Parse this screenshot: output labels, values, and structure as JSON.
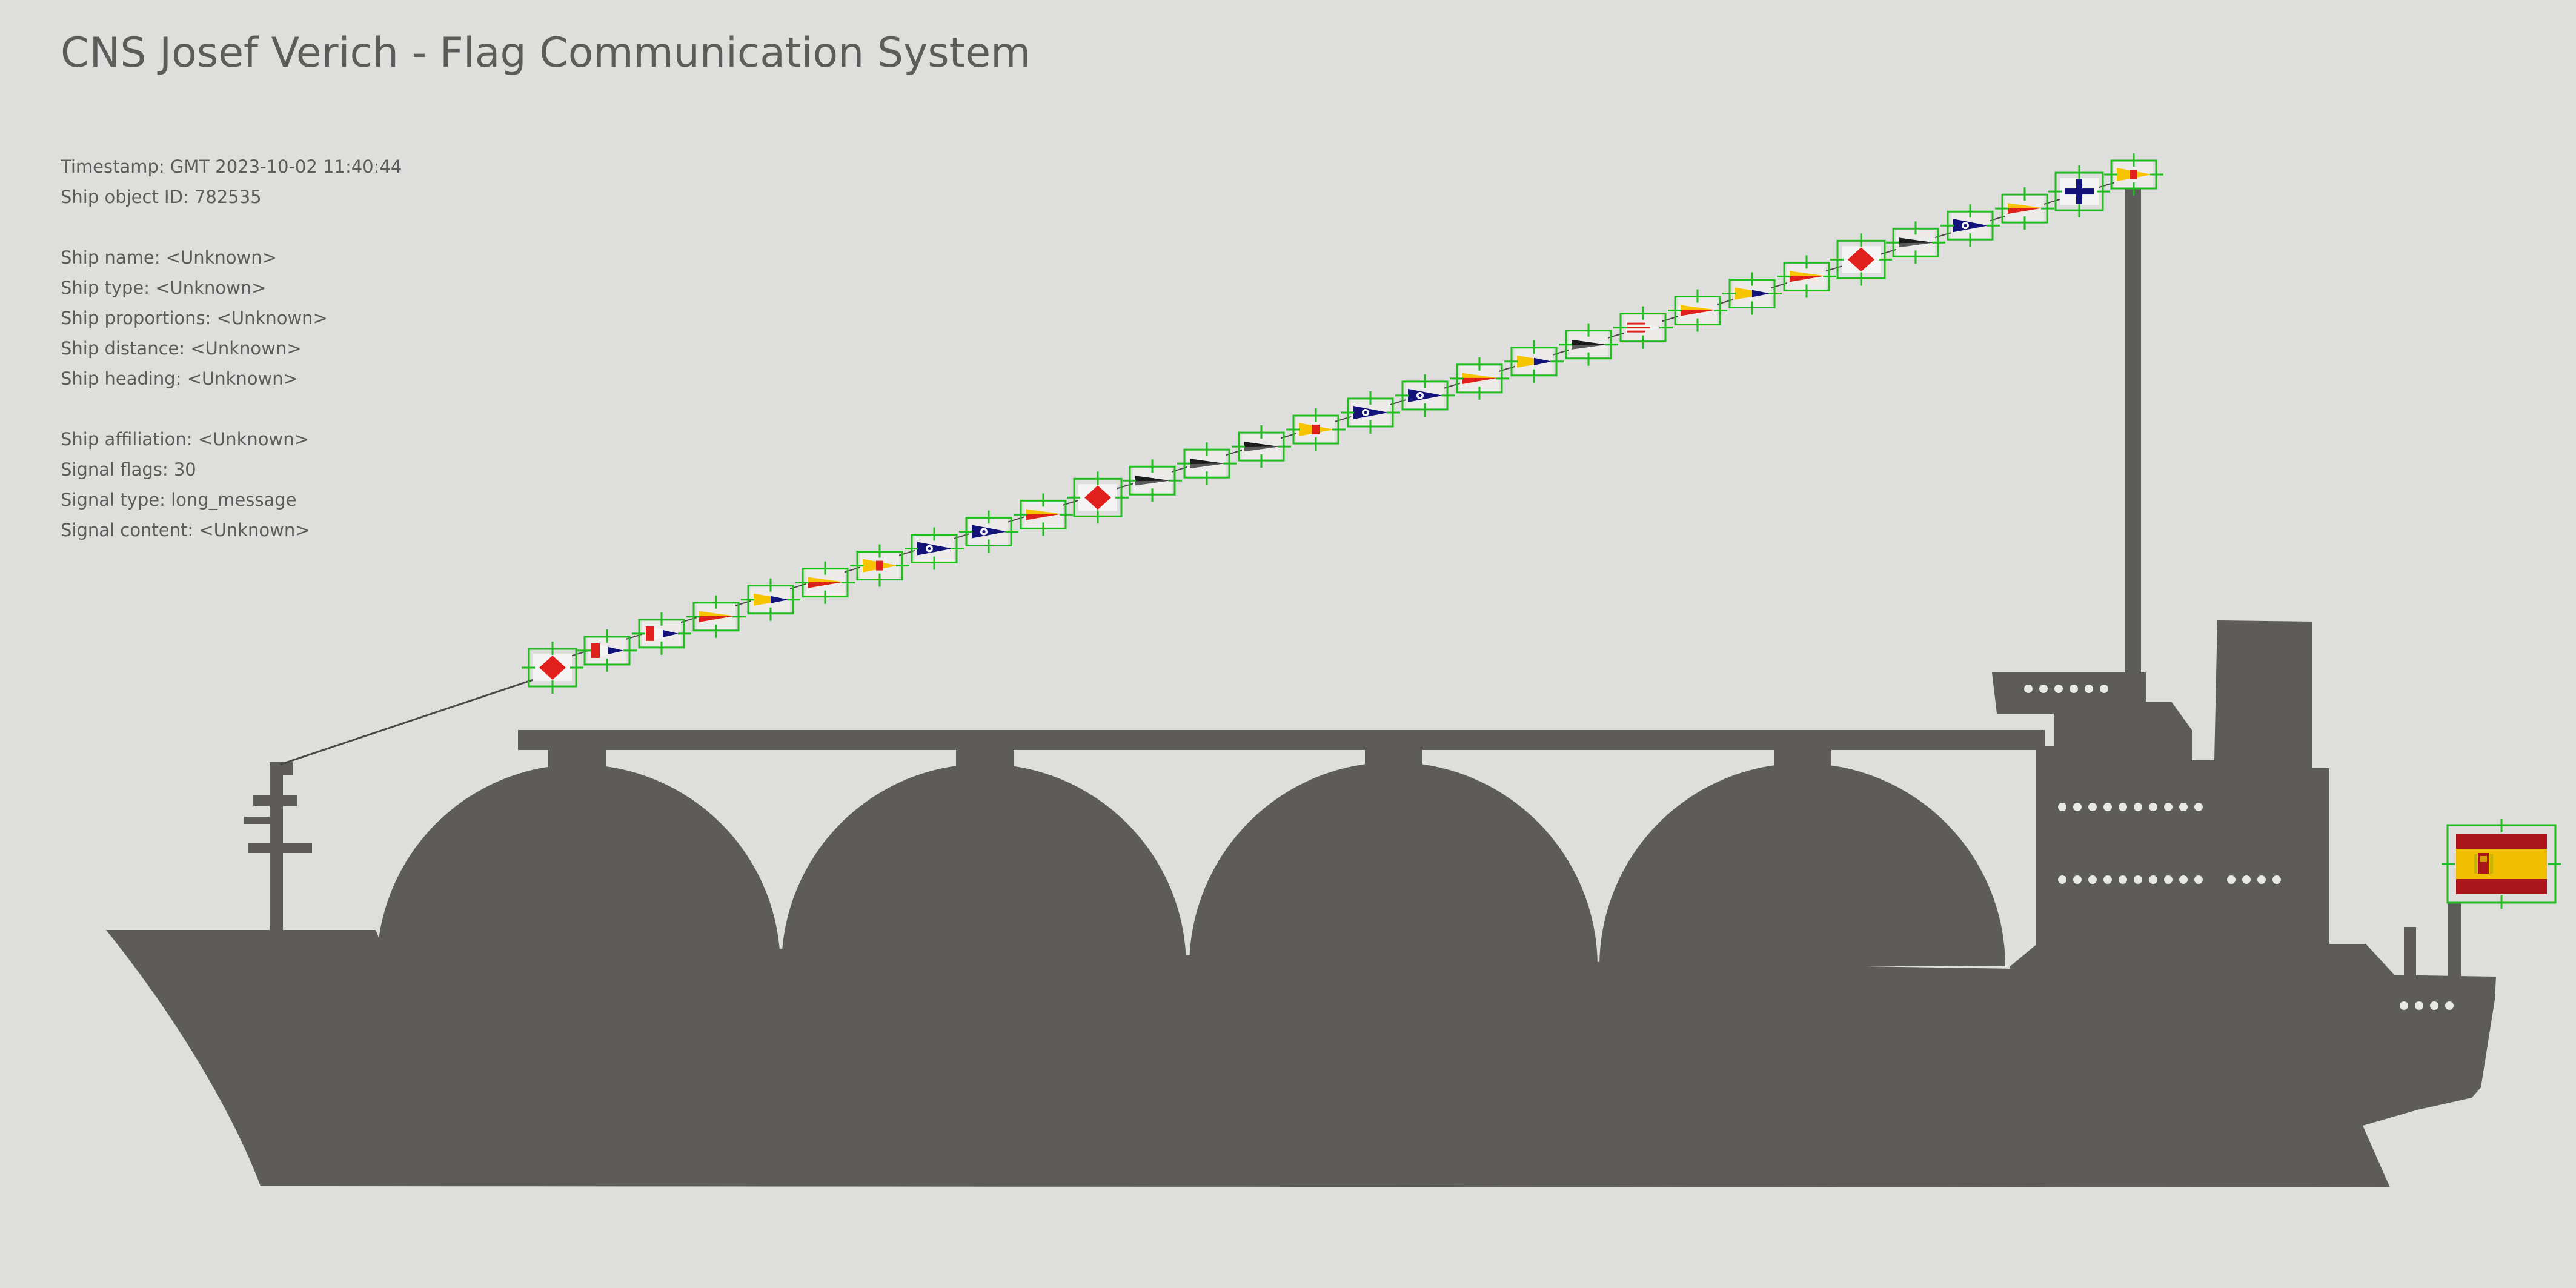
{
  "header": {
    "title": "CNS Josef Verich - Flag Communication System"
  },
  "info": {
    "timestamp": "Timestamp: GMT 2023-10-02 11:40:44",
    "object_id": "Ship object ID: 782535",
    "ship_name": "Ship name: <Unknown>",
    "ship_type": "Ship type: <Unknown>",
    "ship_proportions": "Ship proportions: <Unknown>",
    "ship_distance": "Ship distance: <Unknown>",
    "ship_heading": "Ship heading: <Unknown>",
    "ship_affiliation": "Ship affiliation: <Unknown>",
    "signal_flags": "Signal flags: 30",
    "signal_type": "Signal type: long_message",
    "signal_content": "Signal content: <Unknown>"
  },
  "colors": {
    "background": "#dededc",
    "ship": "#5e5c5b",
    "detection_box": "#22bb22",
    "flag_red": "#e0201c",
    "flag_yellow": "#f6c400",
    "flag_blue": "#13137a",
    "flag_black": "#1a1a1a",
    "flag_white": "#f4f4f4"
  },
  "signal_flags": [
    {
      "icon": "red-diamond-flag-icon",
      "kind": "diamond"
    },
    {
      "icon": "red-white-blue-pennant-icon",
      "kind": "tricolor-pennant"
    },
    {
      "icon": "red-white-blue-pennant-icon",
      "kind": "tricolor-pennant"
    },
    {
      "icon": "yellow-red-pennant-icon",
      "kind": "yellow-red-pennant"
    },
    {
      "icon": "yellow-blue-pennant-icon",
      "kind": "yellow-blue-pennant"
    },
    {
      "icon": "yellow-red-pennant-icon",
      "kind": "yellow-red-pennant"
    },
    {
      "icon": "yellow-red-pennant-icon",
      "kind": "yellow-red-pennant-square"
    },
    {
      "icon": "blue-white-dot-pennant-icon",
      "kind": "blue-dot-pennant"
    },
    {
      "icon": "blue-white-dot-pennant-icon",
      "kind": "blue-dot-pennant"
    },
    {
      "icon": "yellow-red-pennant-icon",
      "kind": "yellow-red-pennant"
    },
    {
      "icon": "red-diamond-flag-icon",
      "kind": "diamond"
    },
    {
      "icon": "black-white-pennant-icon",
      "kind": "black-pennant"
    },
    {
      "icon": "black-white-pennant-icon",
      "kind": "black-pennant"
    },
    {
      "icon": "black-white-pennant-icon",
      "kind": "black-pennant"
    },
    {
      "icon": "yellow-red-pennant-icon",
      "kind": "yellow-red-pennant-square"
    },
    {
      "icon": "blue-white-dot-pennant-icon",
      "kind": "blue-dot-pennant"
    },
    {
      "icon": "blue-white-dot-pennant-icon",
      "kind": "blue-dot-pennant"
    },
    {
      "icon": "yellow-red-pennant-icon",
      "kind": "yellow-red-pennant"
    },
    {
      "icon": "yellow-blue-pennant-icon",
      "kind": "yellow-blue-pennant"
    },
    {
      "icon": "black-white-pennant-icon",
      "kind": "black-pennant"
    },
    {
      "icon": "red-white-striped-pennant-icon",
      "kind": "striped-pennant"
    },
    {
      "icon": "yellow-red-pennant-icon",
      "kind": "yellow-red-pennant"
    },
    {
      "icon": "yellow-blue-pennant-icon",
      "kind": "yellow-blue-pennant"
    },
    {
      "icon": "yellow-red-pennant-icon",
      "kind": "yellow-red-pennant"
    },
    {
      "icon": "red-diamond-flag-icon",
      "kind": "diamond"
    },
    {
      "icon": "black-white-pennant-icon",
      "kind": "black-pennant"
    },
    {
      "icon": "blue-white-dot-pennant-icon",
      "kind": "blue-dot-pennant"
    },
    {
      "icon": "yellow-red-pennant-icon",
      "kind": "yellow-red-pennant"
    },
    {
      "icon": "blue-cross-flag-icon",
      "kind": "cross"
    },
    {
      "icon": "yellow-red-pennant-icon",
      "kind": "yellow-red-pennant-square"
    }
  ],
  "ensign": {
    "icon": "spain-ensign-flag-icon"
  }
}
